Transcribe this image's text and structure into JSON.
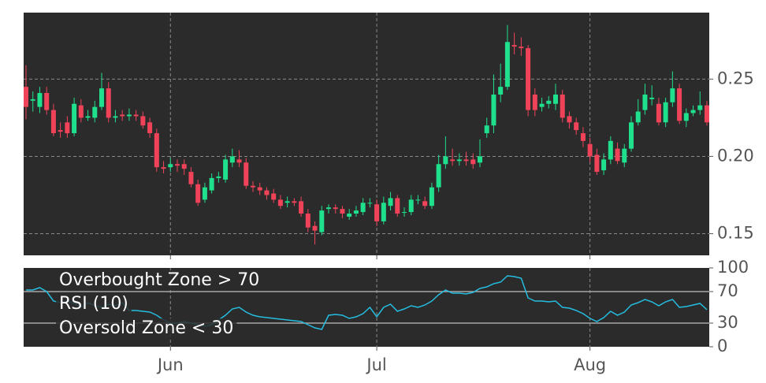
{
  "chart_data": [
    {
      "type": "candlestick",
      "up_color": "#1fe08c",
      "down_color": "#f0435a",
      "open": [
        0.245,
        0.236,
        0.232,
        0.241,
        0.23,
        0.217,
        0.222,
        0.215,
        0.233,
        0.225,
        0.225,
        0.232,
        0.244,
        0.225,
        0.227,
        0.226,
        0.227,
        0.226,
        0.222,
        0.215,
        0.193,
        0.193,
        0.195,
        0.195,
        0.19,
        0.182,
        0.172,
        0.178,
        0.186,
        0.185,
        0.196,
        0.198,
        0.196,
        0.181,
        0.18,
        0.178,
        0.176,
        0.172,
        0.17,
        0.171,
        0.171,
        0.163,
        0.155,
        0.151,
        0.166,
        0.167,
        0.166,
        0.161,
        0.163,
        0.164,
        0.17,
        0.169,
        0.158,
        0.168,
        0.173,
        0.164,
        0.164,
        0.172,
        0.171,
        0.168,
        0.18,
        0.195,
        0.198,
        0.197,
        0.198,
        0.198,
        0.196,
        0.215,
        0.22,
        0.24,
        0.245,
        0.272,
        0.271,
        0.27,
        0.24,
        0.232,
        0.234,
        0.234,
        0.24,
        0.226,
        0.222,
        0.215,
        0.208,
        0.201,
        0.191,
        0.198,
        0.205,
        0.196,
        0.205,
        0.222,
        0.23,
        0.237,
        0.234,
        0.222,
        0.235,
        0.244,
        0.223,
        0.228,
        0.23,
        0.233
      ],
      "high": [
        0.259,
        0.242,
        0.245,
        0.245,
        0.234,
        0.222,
        0.226,
        0.238,
        0.237,
        0.23,
        0.236,
        0.254,
        0.248,
        0.23,
        0.23,
        0.231,
        0.23,
        0.229,
        0.225,
        0.218,
        0.197,
        0.199,
        0.198,
        0.198,
        0.193,
        0.185,
        0.183,
        0.189,
        0.19,
        0.201,
        0.205,
        0.204,
        0.199,
        0.184,
        0.183,
        0.18,
        0.179,
        0.175,
        0.174,
        0.173,
        0.174,
        0.166,
        0.158,
        0.168,
        0.169,
        0.169,
        0.168,
        0.166,
        0.168,
        0.173,
        0.173,
        0.172,
        0.174,
        0.177,
        0.175,
        0.167,
        0.175,
        0.175,
        0.174,
        0.183,
        0.201,
        0.213,
        0.205,
        0.202,
        0.203,
        0.202,
        0.211,
        0.225,
        0.253,
        0.26,
        0.285,
        0.28,
        0.277,
        0.272,
        0.244,
        0.238,
        0.239,
        0.247,
        0.243,
        0.229,
        0.225,
        0.219,
        0.212,
        0.205,
        0.202,
        0.213,
        0.209,
        0.208,
        0.226,
        0.237,
        0.247,
        0.246,
        0.238,
        0.238,
        0.255,
        0.247,
        0.231,
        0.233,
        0.242,
        0.236
      ],
      "low": [
        0.224,
        0.229,
        0.228,
        0.227,
        0.213,
        0.212,
        0.212,
        0.213,
        0.222,
        0.223,
        0.222,
        0.23,
        0.222,
        0.222,
        0.223,
        0.223,
        0.223,
        0.218,
        0.212,
        0.19,
        0.189,
        0.19,
        0.19,
        0.188,
        0.18,
        0.168,
        0.17,
        0.176,
        0.183,
        0.183,
        0.193,
        0.193,
        0.179,
        0.177,
        0.175,
        0.172,
        0.17,
        0.166,
        0.167,
        0.168,
        0.161,
        0.151,
        0.143,
        0.149,
        0.163,
        0.163,
        0.16,
        0.159,
        0.161,
        0.162,
        0.167,
        0.155,
        0.156,
        0.165,
        0.161,
        0.161,
        0.162,
        0.169,
        0.166,
        0.166,
        0.177,
        0.192,
        0.194,
        0.194,
        0.194,
        0.192,
        0.193,
        0.212,
        0.215,
        0.235,
        0.243,
        0.266,
        0.265,
        0.226,
        0.226,
        0.229,
        0.231,
        0.23,
        0.222,
        0.218,
        0.214,
        0.206,
        0.196,
        0.188,
        0.188,
        0.195,
        0.195,
        0.193,
        0.203,
        0.22,
        0.227,
        0.233,
        0.22,
        0.219,
        0.232,
        0.221,
        0.219,
        0.226,
        0.227,
        0.22
      ],
      "close": [
        0.232,
        0.237,
        0.241,
        0.23,
        0.215,
        0.216,
        0.215,
        0.234,
        0.225,
        0.226,
        0.232,
        0.244,
        0.225,
        0.226,
        0.226,
        0.227,
        0.226,
        0.22,
        0.215,
        0.193,
        0.192,
        0.195,
        0.194,
        0.192,
        0.182,
        0.17,
        0.18,
        0.186,
        0.187,
        0.198,
        0.2,
        0.196,
        0.181,
        0.18,
        0.178,
        0.175,
        0.172,
        0.168,
        0.171,
        0.17,
        0.163,
        0.154,
        0.152,
        0.165,
        0.167,
        0.166,
        0.163,
        0.163,
        0.165,
        0.17,
        0.17,
        0.158,
        0.17,
        0.173,
        0.163,
        0.164,
        0.172,
        0.172,
        0.168,
        0.18,
        0.195,
        0.2,
        0.197,
        0.198,
        0.197,
        0.195,
        0.2,
        0.22,
        0.24,
        0.245,
        0.274,
        0.271,
        0.27,
        0.23,
        0.23,
        0.234,
        0.236,
        0.24,
        0.225,
        0.222,
        0.217,
        0.21,
        0.2,
        0.19,
        0.198,
        0.21,
        0.197,
        0.205,
        0.222,
        0.229,
        0.24,
        0.238,
        0.222,
        0.235,
        0.244,
        0.223,
        0.228,
        0.23,
        0.233,
        0.222
      ],
      "ylim": [
        0.136,
        0.293
      ],
      "yticks": [
        0.15,
        {
          "value": 0.2,
          "label": "0.20"
        },
        0.25
      ],
      "grid": true
    },
    {
      "type": "line",
      "categories": [
        null,
        null,
        null,
        null,
        null,
        null,
        null,
        null,
        null,
        null,
        null,
        null,
        null,
        null,
        null,
        null,
        null,
        null,
        null,
        null,
        null,
        "Jun",
        null,
        null,
        null,
        null,
        null,
        null,
        null,
        null,
        null,
        null,
        null,
        null,
        null,
        null,
        null,
        null,
        null,
        null,
        null,
        null,
        null,
        null,
        null,
        null,
        null,
        null,
        null,
        null,
        null,
        "Jul",
        null,
        null,
        null,
        null,
        null,
        null,
        null,
        null,
        null,
        null,
        null,
        null,
        null,
        null,
        null,
        null,
        null,
        null,
        null,
        null,
        null,
        null,
        null,
        null,
        null,
        null,
        null,
        null,
        null,
        null,
        "Aug",
        null,
        null,
        null,
        null,
        null,
        null,
        null,
        null,
        null,
        null,
        null,
        null,
        null,
        null,
        null,
        null,
        null
      ],
      "series": [
        {
          "name": "RSI (10)",
          "color": "#25bde0",
          "values": [
            72,
            72,
            75,
            70,
            58,
            56,
            58,
            55,
            50,
            56,
            52,
            50,
            54,
            52,
            56,
            46,
            46,
            45,
            44,
            40,
            34,
            30,
            30,
            32,
            30,
            28,
            26,
            28,
            34,
            40,
            48,
            50,
            44,
            40,
            38,
            37,
            36,
            35,
            34,
            33,
            32,
            28,
            24,
            22,
            40,
            41,
            40,
            36,
            38,
            42,
            50,
            38,
            50,
            54,
            45,
            48,
            52,
            50,
            53,
            58,
            66,
            72,
            68,
            68,
            67,
            69,
            74,
            76,
            80,
            82,
            90,
            89,
            87,
            62,
            58,
            58,
            57,
            58,
            50,
            49,
            46,
            42,
            36,
            32,
            37,
            45,
            40,
            44,
            53,
            56,
            60,
            57,
            52,
            57,
            60,
            50,
            51,
            53,
            55,
            47
          ]
        }
      ],
      "ylim": [
        0,
        100
      ],
      "yticks": [
        0,
        30,
        70,
        100
      ],
      "hlines": [
        70,
        30
      ],
      "annotations": [
        "Overbought Zone > 70",
        "Oversold Zone < 30"
      ]
    }
  ]
}
